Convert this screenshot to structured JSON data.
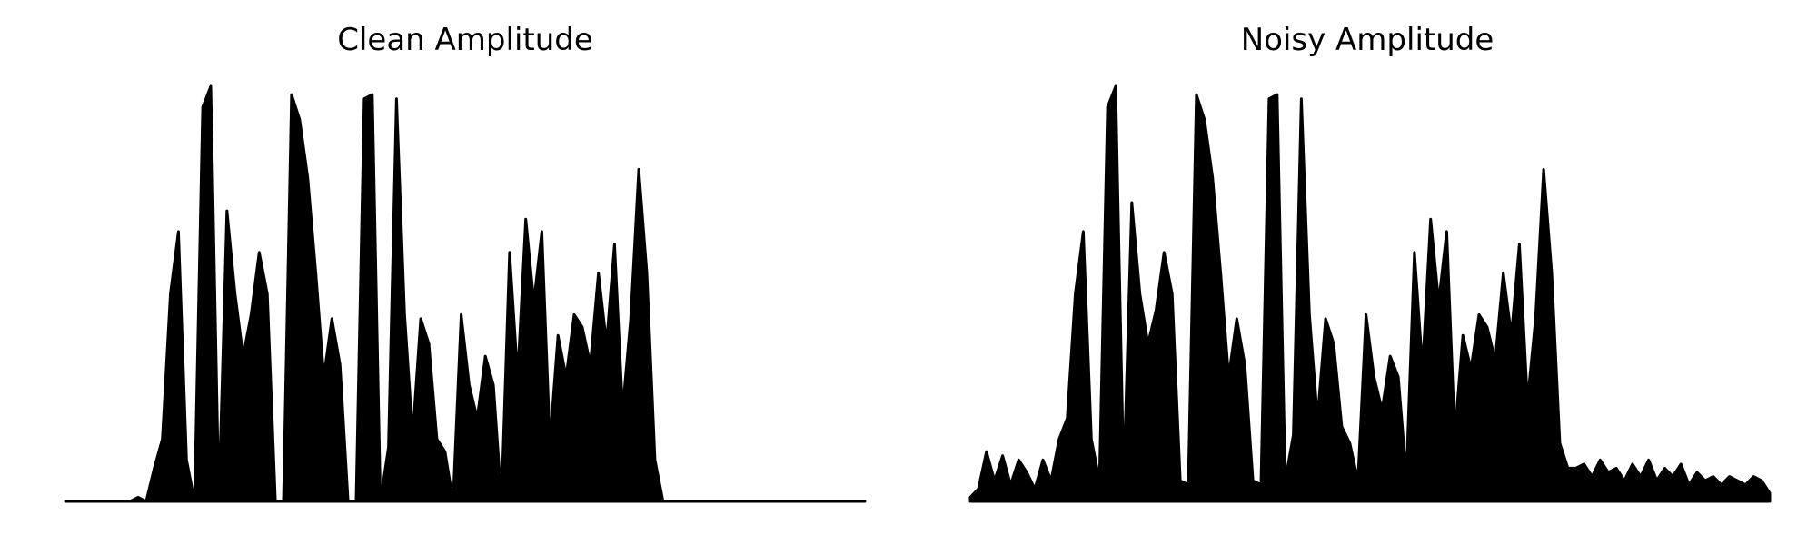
{
  "chart_data": [
    {
      "type": "line",
      "title": "Clean Amplitude",
      "xlabel": "",
      "ylabel": "",
      "axes_visible": false,
      "ylim": [
        0,
        1
      ],
      "color": "#000000",
      "series": [
        {
          "values": [
            0,
            0,
            0,
            0,
            0,
            0,
            0,
            0,
            0,
            0.01,
            0,
            0.08,
            0.15,
            0.5,
            0.65,
            0.1,
            0,
            0.95,
            1.0,
            0,
            0.7,
            0.5,
            0.35,
            0.45,
            0.6,
            0.5,
            0,
            0,
            0.98,
            0.92,
            0.78,
            0.55,
            0.3,
            0.44,
            0.33,
            0,
            0,
            0.97,
            0.98,
            0,
            0.13,
            0.97,
            0.45,
            0.16,
            0.44,
            0.38,
            0.15,
            0.12,
            0,
            0.45,
            0.28,
            0.2,
            0.35,
            0.28,
            0,
            0.6,
            0.3,
            0.68,
            0.48,
            0.65,
            0.14,
            0.4,
            0.3,
            0.45,
            0.42,
            0.33,
            0.55,
            0.38,
            0.62,
            0.22,
            0.44,
            0.8,
            0.55,
            0.1,
            0,
            0,
            0,
            0,
            0,
            0,
            0,
            0,
            0,
            0,
            0,
            0,
            0,
            0,
            0,
            0,
            0,
            0,
            0,
            0,
            0,
            0,
            0,
            0,
            0,
            0
          ]
        }
      ]
    },
    {
      "type": "line",
      "title": "Noisy Amplitude",
      "xlabel": "",
      "ylabel": "",
      "axes_visible": false,
      "ylim": [
        0,
        1
      ],
      "color": "#000000",
      "series": [
        {
          "values": [
            0.01,
            0.03,
            0.12,
            0.05,
            0.11,
            0.04,
            0.1,
            0.07,
            0.03,
            0.1,
            0.05,
            0.15,
            0.2,
            0.5,
            0.65,
            0.15,
            0.05,
            0.95,
            1.0,
            0.05,
            0.72,
            0.5,
            0.38,
            0.46,
            0.6,
            0.5,
            0.05,
            0.04,
            0.98,
            0.92,
            0.78,
            0.55,
            0.3,
            0.44,
            0.33,
            0.05,
            0.04,
            0.97,
            0.98,
            0.05,
            0.16,
            0.97,
            0.45,
            0.2,
            0.44,
            0.38,
            0.18,
            0.14,
            0.05,
            0.45,
            0.3,
            0.22,
            0.35,
            0.3,
            0.06,
            0.6,
            0.32,
            0.68,
            0.48,
            0.65,
            0.16,
            0.4,
            0.32,
            0.45,
            0.42,
            0.34,
            0.55,
            0.4,
            0.62,
            0.24,
            0.44,
            0.8,
            0.55,
            0.14,
            0.08,
            0.08,
            0.09,
            0.06,
            0.1,
            0.07,
            0.08,
            0.05,
            0.09,
            0.06,
            0.1,
            0.05,
            0.08,
            0.06,
            0.09,
            0.04,
            0.07,
            0.05,
            0.06,
            0.04,
            0.06,
            0.05,
            0.04,
            0.06,
            0.05,
            0.02
          ]
        }
      ]
    }
  ]
}
